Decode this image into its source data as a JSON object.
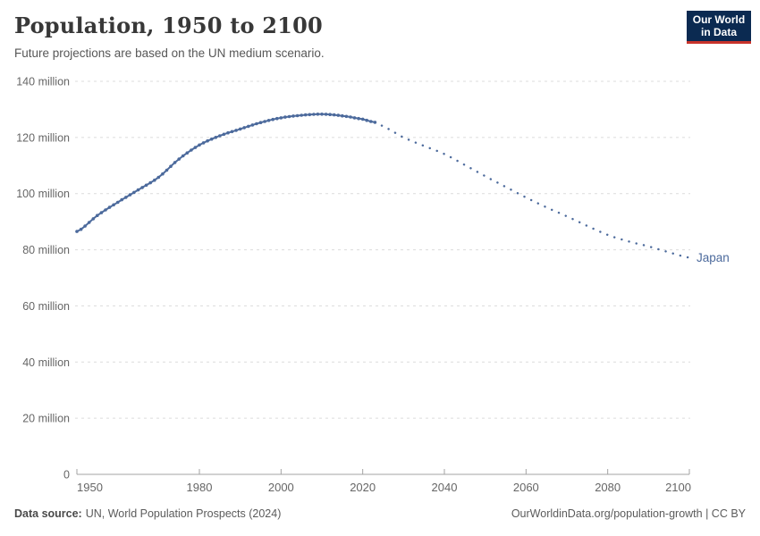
{
  "header": {
    "title": "Population, 1950 to 2100",
    "subtitle": "Future projections are based on the UN medium scenario."
  },
  "logo": {
    "line1": "Our World",
    "line2": "in Data"
  },
  "footer": {
    "source_label": "Data source:",
    "source_text": "UN, World Population Prospects (2024)",
    "right_text": "OurWorldinData.org/population-growth | CC BY"
  },
  "colors": {
    "line": "#4c6a9c",
    "entity_label": "#4c6a9c",
    "logo_bg": "#0b2a51",
    "logo_bar": "#c8332b",
    "gridline": "#dcdcdc",
    "axis": "#a3a3a3",
    "tick_text": "#666666"
  },
  "chart_data": {
    "type": "line",
    "title": "Population, 1950 to 2100",
    "subtitle": "Future projections are based on the UN medium scenario.",
    "xlabel": "",
    "ylabel": "",
    "unit": "million people",
    "xlim": [
      1950,
      2100
    ],
    "ylim": [
      0,
      140
    ],
    "grid": "horizontal dashed gridlines at 20-million steps",
    "legend_position": "entity label at end of line",
    "entity_label": "Japan",
    "x_ticks": [
      1950,
      1980,
      2000,
      2020,
      2040,
      2060,
      2080,
      2100
    ],
    "y_ticks": [
      {
        "value": 0,
        "label": "0"
      },
      {
        "value": 20,
        "label": "20 million"
      },
      {
        "value": 40,
        "label": "40 million"
      },
      {
        "value": 60,
        "label": "60 million"
      },
      {
        "value": 80,
        "label": "80 million"
      },
      {
        "value": 100,
        "label": "100 million"
      },
      {
        "value": 120,
        "label": "120 million"
      },
      {
        "value": 140,
        "label": "140 million"
      }
    ],
    "series": [
      {
        "name": "Japan — estimates",
        "style": "solid line with yearly dot markers",
        "points": [
          [
            1950,
            86.5
          ],
          [
            1955,
            92.2
          ],
          [
            1960,
            96.9
          ],
          [
            1965,
            101.3
          ],
          [
            1970,
            105.8
          ],
          [
            1975,
            112.3
          ],
          [
            1980,
            117.3
          ],
          [
            1985,
            120.6
          ],
          [
            1990,
            123.0
          ],
          [
            1995,
            125.3
          ],
          [
            2000,
            127.0
          ],
          [
            2005,
            127.9
          ],
          [
            2010,
            128.3
          ],
          [
            2015,
            127.7
          ],
          [
            2020,
            126.5
          ],
          [
            2023,
            125.4
          ]
        ]
      },
      {
        "name": "Japan — UN medium projection",
        "style": "dotted line",
        "points": [
          [
            2023,
            125.4
          ],
          [
            2025,
            123.9
          ],
          [
            2030,
            120.0
          ],
          [
            2035,
            117.0
          ],
          [
            2040,
            114.1
          ],
          [
            2045,
            110.2
          ],
          [
            2050,
            106.2
          ],
          [
            2055,
            102.4
          ],
          [
            2060,
            98.6
          ],
          [
            2065,
            95.1
          ],
          [
            2070,
            91.9
          ],
          [
            2075,
            88.5
          ],
          [
            2080,
            85.3
          ],
          [
            2085,
            83.0
          ],
          [
            2090,
            81.2
          ],
          [
            2095,
            79.1
          ],
          [
            2100,
            77.2
          ]
        ]
      }
    ]
  }
}
